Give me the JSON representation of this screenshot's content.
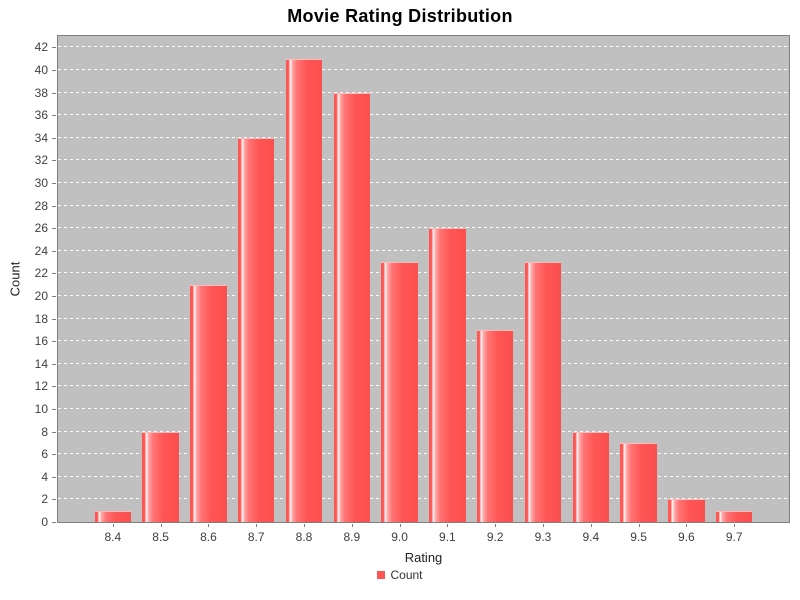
{
  "title": "Movie Rating Distribution",
  "chart_data": {
    "type": "bar",
    "title": "Movie Rating Distribution",
    "xlabel": "Rating",
    "ylabel": "Count",
    "series_name": "Count",
    "categories": [
      "8.4",
      "8.5",
      "8.6",
      "8.7",
      "8.8",
      "8.9",
      "9.0",
      "9.1",
      "9.2",
      "9.3",
      "9.4",
      "9.5",
      "9.6",
      "9.7"
    ],
    "values": [
      1,
      8,
      21,
      34,
      41,
      38,
      23,
      26,
      17,
      23,
      8,
      7,
      2,
      1
    ],
    "ylim": [
      0,
      43
    ],
    "ytick_step": 2,
    "ytick_max": 42,
    "grid": "horizontal-dashed-white",
    "legend_position": "bottom-center"
  },
  "legend": {
    "label": "Count"
  },
  "colors": {
    "bar": "#FF5555",
    "bar_highlight": "#FFFDFD",
    "plot_background": "#C0C0C0",
    "plot_border": "#7F7F7F",
    "gridline": "#FFFFFF",
    "chart_background": "#FFFFFF",
    "tick_label": "#3F3F3F",
    "title_color": "#000000"
  }
}
